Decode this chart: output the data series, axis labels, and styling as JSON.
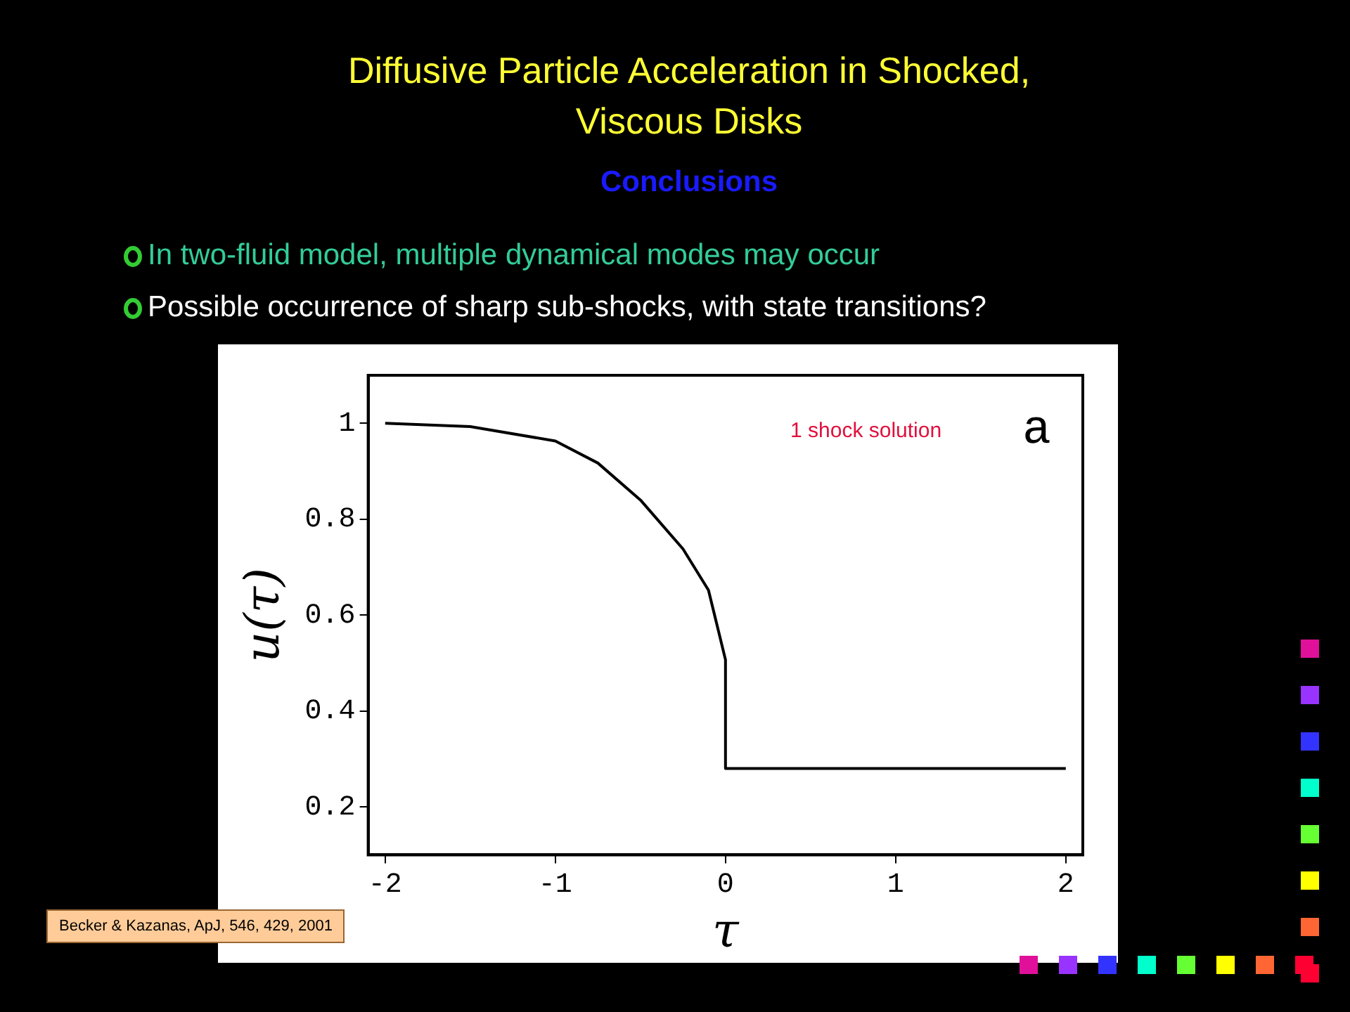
{
  "chart_data": {
    "type": "line",
    "title": "Diffusive Particle Acceleration in Shocked, Viscous Disks",
    "subtitle": "Conclusions",
    "xlabel": "τ",
    "ylabel": "u(τ)",
    "annotations": [
      "In two-fluid model, multiple dynamical modes may occur",
      "Possible occurrence of sharp sub-shocks, with state transitions?",
      "1 shock solution",
      "a",
      "Becker & Kazanas, ApJ, 546, 429, 2001"
    ],
    "x": [
      -2,
      -1.5,
      -1,
      -0.75,
      -0.5,
      -0.25,
      -0.1,
      0,
      0,
      2
    ],
    "series": [
      {
        "color": "#000000",
        "values": [
          1.0,
          0.993,
          0.963,
          0.917,
          0.84,
          0.738,
          0.652,
          0.507,
          0.28,
          0.28
        ]
      }
    ],
    "xlim": [
      -2.1,
      2.1
    ],
    "xticks": [
      -2,
      -1,
      0,
      1,
      2
    ],
    "ylim": [
      0.1,
      1.1
    ],
    "yticks": [
      0.2,
      0.4,
      0.6,
      0.8,
      1
    ],
    "grid": false,
    "legend": false,
    "marker": "none",
    "line_style": "solid"
  }
}
